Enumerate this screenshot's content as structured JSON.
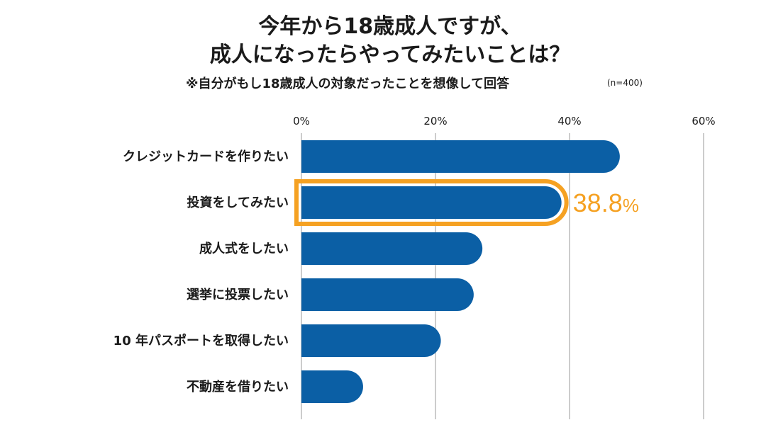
{
  "title_line1": "今年から18歳成人ですが、",
  "title_line2": "成人になったらやってみたいことは？",
  "subtitle": "※自分がもし18歳成人の対象だったことを想像して回答",
  "sample_note": "(n=400)",
  "colors": {
    "bar": "#0b5fa5",
    "highlight": "#f5a122",
    "grid": "#9a9a9a"
  },
  "chart_data": {
    "type": "bar",
    "orientation": "horizontal",
    "categories": [
      "クレジットカードを作りたい",
      "投資をしてみたい",
      "成人式をしたい",
      "選挙に投票したい",
      "10 年パスポートを取得したい",
      "不動産を借りたい"
    ],
    "values": [
      47.5,
      38.8,
      27.0,
      25.7,
      20.8,
      9.2
    ],
    "xlim": [
      0,
      60
    ],
    "ticks": [
      0,
      20,
      40,
      60
    ],
    "tick_labels": [
      "0%",
      "20%",
      "40%",
      "60%"
    ],
    "grid": true,
    "highlight_index": 1,
    "data_labels": [
      {
        "index": 1,
        "number": "38.8",
        "unit": "%"
      }
    ]
  }
}
